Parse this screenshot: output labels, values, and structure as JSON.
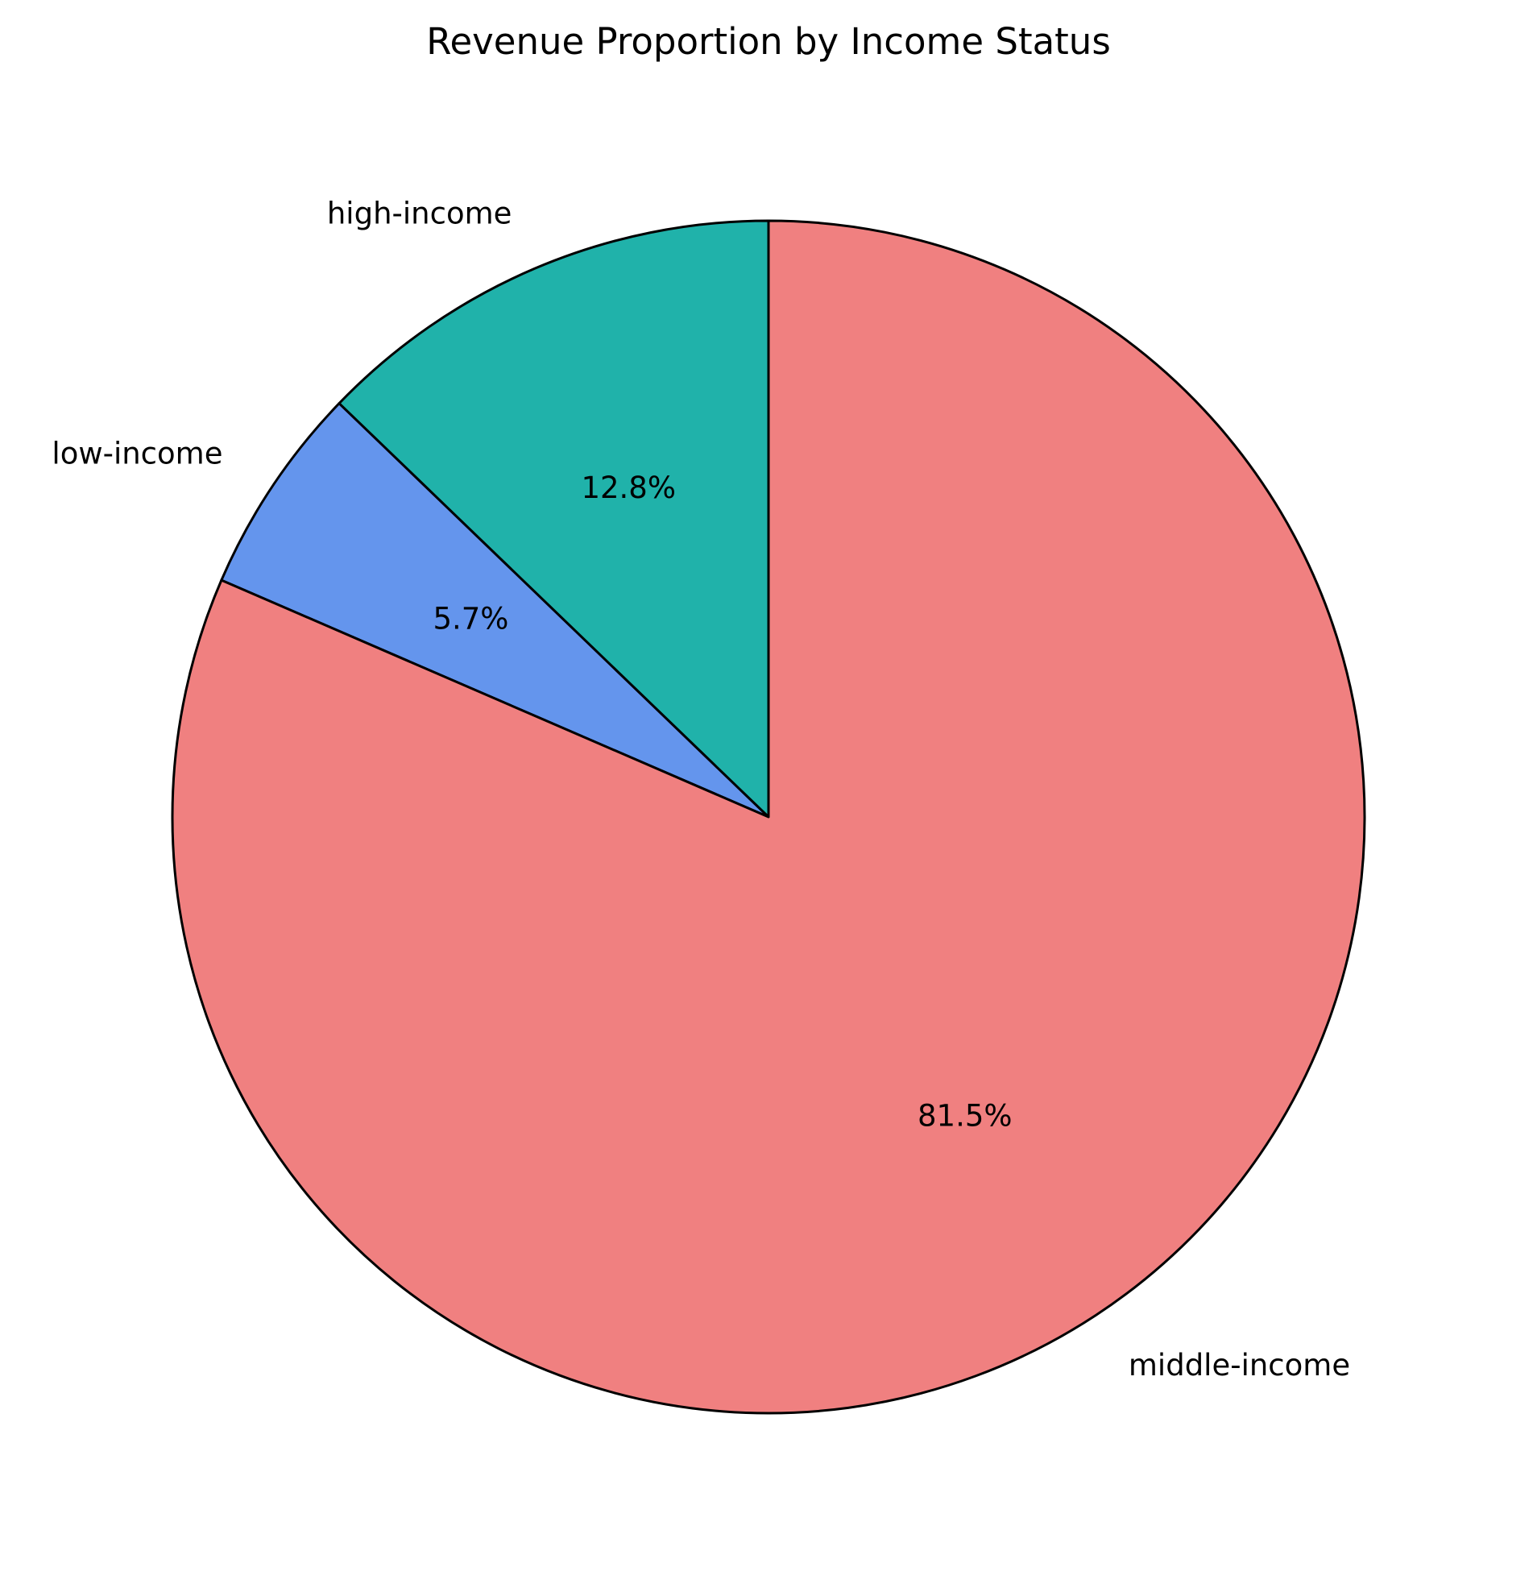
{
  "chart_data": {
    "type": "pie",
    "title": "Revenue Proportion by Income Status",
    "start_angle_deg": 90,
    "direction": "counterclockwise",
    "slices": [
      {
        "label": "high-income",
        "value": 12.8,
        "pct_label": "12.8%",
        "color": "#20b2aa"
      },
      {
        "label": "low-income",
        "value": 5.7,
        "pct_label": "5.7%",
        "color": "#6495ed"
      },
      {
        "label": "middle-income",
        "value": 81.5,
        "pct_label": "81.5%",
        "color": "#f08080"
      }
    ],
    "edge_color": "#000000"
  }
}
